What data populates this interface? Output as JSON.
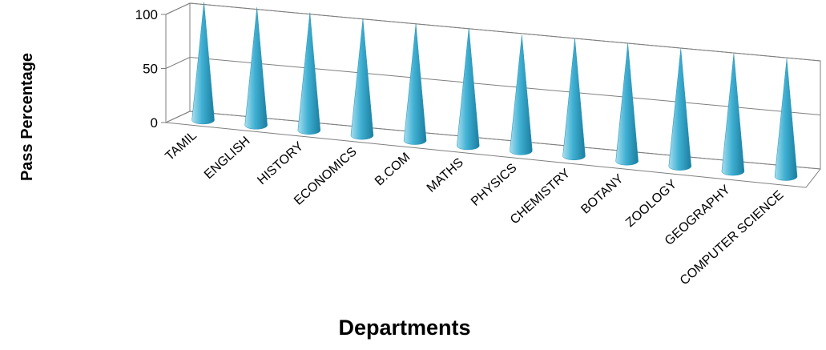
{
  "chart_data": {
    "type": "bar",
    "style": "3d-cone",
    "categories": [
      "TAMIL",
      "ENGLISH",
      "HISTORY",
      "ECONOMICS",
      "B.COM",
      "MATHS",
      "PHYSICS",
      "CHEMISTRY",
      "BOTANY",
      "ZOOLOGY",
      "GEOGRAPHY",
      "COMPUTER SCIENCE"
    ],
    "values": [
      100,
      100,
      100,
      99,
      99,
      100,
      98,
      100,
      100,
      100,
      100,
      100
    ],
    "xlabel": "Departments",
    "ylabel": "Pass Percentage",
    "ylim": [
      0,
      100
    ],
    "yticks": [
      0,
      50,
      100
    ],
    "grid": true,
    "legend": "none",
    "colors": {
      "cone_light": "#a8dff0",
      "cone_mid": "#3fb0d3",
      "cone_dark": "#1b7d9e",
      "axis": "#7f7f7f"
    }
  }
}
